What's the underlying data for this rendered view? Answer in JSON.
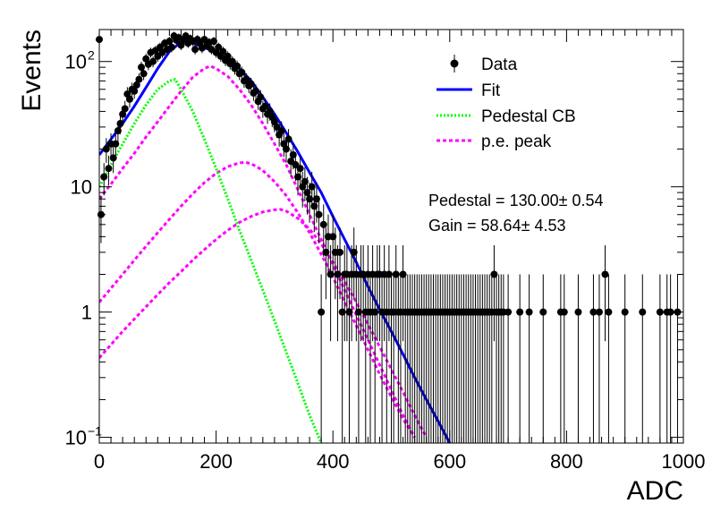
{
  "chart_data": {
    "type": "scatter",
    "xlabel": "ADC",
    "ylabel": "Events",
    "xlim": [
      0,
      1000
    ],
    "ylim": [
      0.09,
      180
    ],
    "yscale": "log",
    "xticks": [
      {
        "v": 0,
        "label": "0"
      },
      {
        "v": 200,
        "label": "200"
      },
      {
        "v": 400,
        "label": "400"
      },
      {
        "v": 600,
        "label": "600"
      },
      {
        "v": 800,
        "label": "800"
      },
      {
        "v": 1000,
        "label": "1000"
      }
    ],
    "yticks_major": [
      {
        "v": 0.1,
        "base": "10",
        "exp": "−1"
      },
      {
        "v": 1,
        "base": "1",
        "exp": ""
      },
      {
        "v": 10,
        "base": "10",
        "exp": ""
      },
      {
        "v": 100,
        "base": "10",
        "exp": "2"
      }
    ],
    "legend": {
      "placement": "top-right",
      "entries": [
        {
          "label": "Data",
          "style": "marker"
        },
        {
          "label": "Fit",
          "style": "solid",
          "color": "#0000ff"
        },
        {
          "label": "Pedestal CB",
          "style": "dotted",
          "color": "#00ff00"
        },
        {
          "label": "p.e. peak",
          "style": "dashed",
          "color": "#ff00ff"
        }
      ]
    },
    "annotations": [
      {
        "label": "Pedestal = 130.00± 0.54"
      },
      {
        "label": "Gain = 58.64± 4.53"
      }
    ],
    "colors": {
      "data": "#000000",
      "fit": "#0000ff",
      "pedestal": "#00ff00",
      "pe_peak": "#ff00ff"
    },
    "data": [
      [
        0,
        150
      ],
      [
        3,
        6
      ],
      [
        8,
        12
      ],
      [
        12,
        20
      ],
      [
        16,
        14
      ],
      [
        20,
        22
      ],
      [
        24,
        17
      ],
      [
        28,
        22
      ],
      [
        32,
        28
      ],
      [
        36,
        32
      ],
      [
        40,
        38
      ],
      [
        44,
        42
      ],
      [
        48,
        55
      ],
      [
        52,
        50
      ],
      [
        56,
        60
      ],
      [
        60,
        58
      ],
      [
        64,
        65
      ],
      [
        68,
        72
      ],
      [
        72,
        90
      ],
      [
        76,
        80
      ],
      [
        80,
        105
      ],
      [
        84,
        95
      ],
      [
        88,
        118
      ],
      [
        92,
        100
      ],
      [
        96,
        122
      ],
      [
        100,
        110
      ],
      [
        104,
        130
      ],
      [
        108,
        118
      ],
      [
        112,
        140
      ],
      [
        116,
        125
      ],
      [
        120,
        145
      ],
      [
        124,
        130
      ],
      [
        128,
        160
      ],
      [
        132,
        148
      ],
      [
        136,
        155
      ],
      [
        140,
        135
      ],
      [
        144,
        150
      ],
      [
        148,
        160
      ],
      [
        152,
        140
      ],
      [
        156,
        152
      ],
      [
        160,
        145
      ],
      [
        164,
        125
      ],
      [
        168,
        150
      ],
      [
        172,
        140
      ],
      [
        176,
        128
      ],
      [
        180,
        150
      ],
      [
        184,
        135
      ],
      [
        188,
        142
      ],
      [
        192,
        125
      ],
      [
        196,
        145
      ],
      [
        200,
        118
      ],
      [
        204,
        130
      ],
      [
        208,
        110
      ],
      [
        212,
        120
      ],
      [
        216,
        102
      ],
      [
        220,
        110
      ],
      [
        224,
        96
      ],
      [
        228,
        100
      ],
      [
        232,
        88
      ],
      [
        236,
        92
      ],
      [
        240,
        80
      ],
      [
        244,
        82
      ],
      [
        248,
        70
      ],
      [
        252,
        72
      ],
      [
        256,
        64
      ],
      [
        260,
        66
      ],
      [
        264,
        56
      ],
      [
        268,
        58
      ],
      [
        272,
        48
      ],
      [
        276,
        52
      ],
      [
        280,
        42
      ],
      [
        284,
        44
      ],
      [
        288,
        38
      ],
      [
        292,
        40
      ],
      [
        296,
        36
      ],
      [
        300,
        33
      ],
      [
        304,
        30
      ],
      [
        308,
        26
      ],
      [
        312,
        28
      ],
      [
        316,
        22
      ],
      [
        320,
        20
      ],
      [
        324,
        24
      ],
      [
        328,
        16
      ],
      [
        332,
        18
      ],
      [
        336,
        15
      ],
      [
        340,
        12
      ],
      [
        344,
        14
      ],
      [
        348,
        10
      ],
      [
        352,
        11
      ],
      [
        356,
        9
      ],
      [
        360,
        8
      ],
      [
        364,
        10
      ],
      [
        368,
        7
      ],
      [
        372,
        8
      ],
      [
        376,
        6
      ],
      [
        380,
        1
      ],
      [
        384,
        5
      ],
      [
        388,
        3
      ],
      [
        392,
        4
      ],
      [
        396,
        2
      ],
      [
        400,
        4
      ],
      [
        404,
        3
      ],
      [
        408,
        2
      ],
      [
        412,
        3
      ],
      [
        416,
        1
      ],
      [
        420,
        2
      ],
      [
        424,
        2
      ],
      [
        428,
        1
      ],
      [
        432,
        2
      ],
      [
        436,
        3
      ],
      [
        440,
        2
      ],
      [
        444,
        1
      ],
      [
        448,
        2
      ],
      [
        452,
        2
      ],
      [
        456,
        1
      ],
      [
        460,
        2
      ],
      [
        464,
        1
      ],
      [
        468,
        2
      ],
      [
        472,
        1
      ],
      [
        476,
        2
      ],
      [
        480,
        2
      ],
      [
        484,
        1
      ],
      [
        488,
        2
      ],
      [
        492,
        1
      ],
      [
        496,
        2
      ],
      [
        500,
        1
      ],
      [
        504,
        1
      ],
      [
        508,
        2
      ],
      [
        512,
        1
      ],
      [
        516,
        1
      ],
      [
        520,
        2
      ],
      [
        524,
        1
      ],
      [
        528,
        1
      ],
      [
        532,
        1
      ],
      [
        536,
        1
      ],
      [
        540,
        1
      ],
      [
        544,
        1
      ],
      [
        548,
        1
      ],
      [
        552,
        1
      ],
      [
        556,
        1
      ],
      [
        560,
        1
      ],
      [
        564,
        1
      ],
      [
        568,
        1
      ],
      [
        572,
        1
      ],
      [
        576,
        1
      ],
      [
        580,
        1
      ],
      [
        584,
        1
      ],
      [
        588,
        1
      ],
      [
        592,
        1
      ],
      [
        596,
        1
      ],
      [
        600,
        1
      ],
      [
        604,
        1
      ],
      [
        608,
        1
      ],
      [
        612,
        1
      ],
      [
        616,
        1
      ],
      [
        620,
        1
      ],
      [
        624,
        1
      ],
      [
        628,
        1
      ],
      [
        632,
        1
      ],
      [
        636,
        1
      ],
      [
        640,
        1
      ],
      [
        644,
        1
      ],
      [
        648,
        1
      ],
      [
        652,
        1
      ],
      [
        656,
        1
      ],
      [
        660,
        1
      ],
      [
        664,
        1
      ],
      [
        668,
        1
      ],
      [
        672,
        1
      ],
      [
        676,
        2
      ],
      [
        680,
        1
      ],
      [
        684,
        1
      ],
      [
        688,
        1
      ],
      [
        692,
        1
      ],
      [
        700,
        1
      ],
      [
        720,
        1
      ],
      [
        736,
        1
      ],
      [
        760,
        1
      ],
      [
        790,
        1
      ],
      [
        796,
        1
      ],
      [
        820,
        1
      ],
      [
        846,
        1
      ],
      [
        856,
        1
      ],
      [
        866,
        2
      ],
      [
        872,
        1
      ],
      [
        900,
        1
      ],
      [
        930,
        1
      ],
      [
        960,
        1
      ],
      [
        972,
        1
      ],
      [
        978,
        1
      ],
      [
        990,
        1
      ]
    ],
    "fit": [
      [
        0,
        18
      ],
      [
        20,
        24
      ],
      [
        40,
        32
      ],
      [
        60,
        44
      ],
      [
        80,
        62
      ],
      [
        100,
        88
      ],
      [
        120,
        120
      ],
      [
        140,
        143
      ],
      [
        160,
        140
      ],
      [
        180,
        130
      ],
      [
        200,
        118
      ],
      [
        220,
        104
      ],
      [
        240,
        88
      ],
      [
        260,
        70
      ],
      [
        280,
        52
      ],
      [
        300,
        38
      ],
      [
        320,
        27
      ],
      [
        340,
        19
      ],
      [
        360,
        13
      ],
      [
        380,
        9
      ],
      [
        400,
        5.8
      ],
      [
        420,
        3.8
      ],
      [
        440,
        2.5
      ],
      [
        460,
        1.6
      ],
      [
        480,
        1.05
      ],
      [
        500,
        0.7
      ],
      [
        520,
        0.46
      ],
      [
        540,
        0.3
      ],
      [
        560,
        0.2
      ],
      [
        580,
        0.135
      ],
      [
        600,
        0.09
      ]
    ],
    "pedestal": [
      [
        0,
        10
      ],
      [
        20,
        15
      ],
      [
        40,
        22
      ],
      [
        60,
        32
      ],
      [
        80,
        45
      ],
      [
        100,
        60
      ],
      [
        120,
        70
      ],
      [
        130,
        72
      ],
      [
        140,
        60
      ],
      [
        160,
        40
      ],
      [
        180,
        24
      ],
      [
        200,
        14
      ],
      [
        220,
        8
      ],
      [
        240,
        4.5
      ],
      [
        260,
        2.6
      ],
      [
        280,
        1.5
      ],
      [
        300,
        0.85
      ],
      [
        320,
        0.48
      ],
      [
        340,
        0.27
      ],
      [
        360,
        0.15
      ],
      [
        380,
        0.09
      ]
    ],
    "pe_peaks": [
      [
        [
          0,
          8
        ],
        [
          20,
          10.5
        ],
        [
          40,
          14
        ],
        [
          60,
          18.5
        ],
        [
          80,
          25
        ],
        [
          100,
          33
        ],
        [
          120,
          44
        ],
        [
          140,
          58
        ],
        [
          160,
          75
        ],
        [
          180,
          88
        ],
        [
          190,
          92
        ],
        [
          200,
          88
        ],
        [
          220,
          76
        ],
        [
          240,
          60
        ],
        [
          260,
          45
        ],
        [
          280,
          32
        ],
        [
          300,
          22
        ],
        [
          320,
          15
        ],
        [
          340,
          9.5
        ],
        [
          360,
          6
        ],
        [
          380,
          3.8
        ],
        [
          400,
          2.4
        ],
        [
          420,
          1.5
        ],
        [
          440,
          0.95
        ],
        [
          460,
          0.6
        ],
        [
          480,
          0.38
        ],
        [
          500,
          0.24
        ],
        [
          520,
          0.15
        ],
        [
          540,
          0.1
        ]
      ],
      [
        [
          0,
          1.2
        ],
        [
          20,
          1.55
        ],
        [
          40,
          2.0
        ],
        [
          60,
          2.6
        ],
        [
          80,
          3.35
        ],
        [
          100,
          4.3
        ],
        [
          120,
          5.5
        ],
        [
          140,
          7
        ],
        [
          160,
          8.8
        ],
        [
          180,
          10.8
        ],
        [
          200,
          12.8
        ],
        [
          220,
          14.5
        ],
        [
          240,
          15.5
        ],
        [
          250,
          15.7
        ],
        [
          260,
          15.3
        ],
        [
          280,
          13.5
        ],
        [
          300,
          11
        ],
        [
          320,
          8.5
        ],
        [
          340,
          6.2
        ],
        [
          360,
          4.3
        ],
        [
          380,
          2.9
        ],
        [
          400,
          1.9
        ],
        [
          420,
          1.2
        ],
        [
          440,
          0.78
        ],
        [
          460,
          0.5
        ],
        [
          480,
          0.32
        ],
        [
          500,
          0.21
        ],
        [
          520,
          0.14
        ],
        [
          540,
          0.1
        ]
      ],
      [
        [
          0,
          0.43
        ],
        [
          20,
          0.55
        ],
        [
          40,
          0.7
        ],
        [
          60,
          0.88
        ],
        [
          80,
          1.1
        ],
        [
          100,
          1.38
        ],
        [
          120,
          1.72
        ],
        [
          140,
          2.1
        ],
        [
          160,
          2.6
        ],
        [
          180,
          3.15
        ],
        [
          200,
          3.8
        ],
        [
          220,
          4.5
        ],
        [
          240,
          5.2
        ],
        [
          260,
          5.8
        ],
        [
          280,
          6.3
        ],
        [
          300,
          6.55
        ],
        [
          310,
          6.6
        ],
        [
          320,
          6.4
        ],
        [
          340,
          5.6
        ],
        [
          360,
          4.6
        ],
        [
          380,
          3.5
        ],
        [
          400,
          2.5
        ],
        [
          420,
          1.75
        ],
        [
          440,
          1.2
        ],
        [
          460,
          0.8
        ],
        [
          480,
          0.53
        ],
        [
          500,
          0.35
        ],
        [
          520,
          0.23
        ],
        [
          540,
          0.15
        ],
        [
          560,
          0.1
        ]
      ]
    ]
  }
}
